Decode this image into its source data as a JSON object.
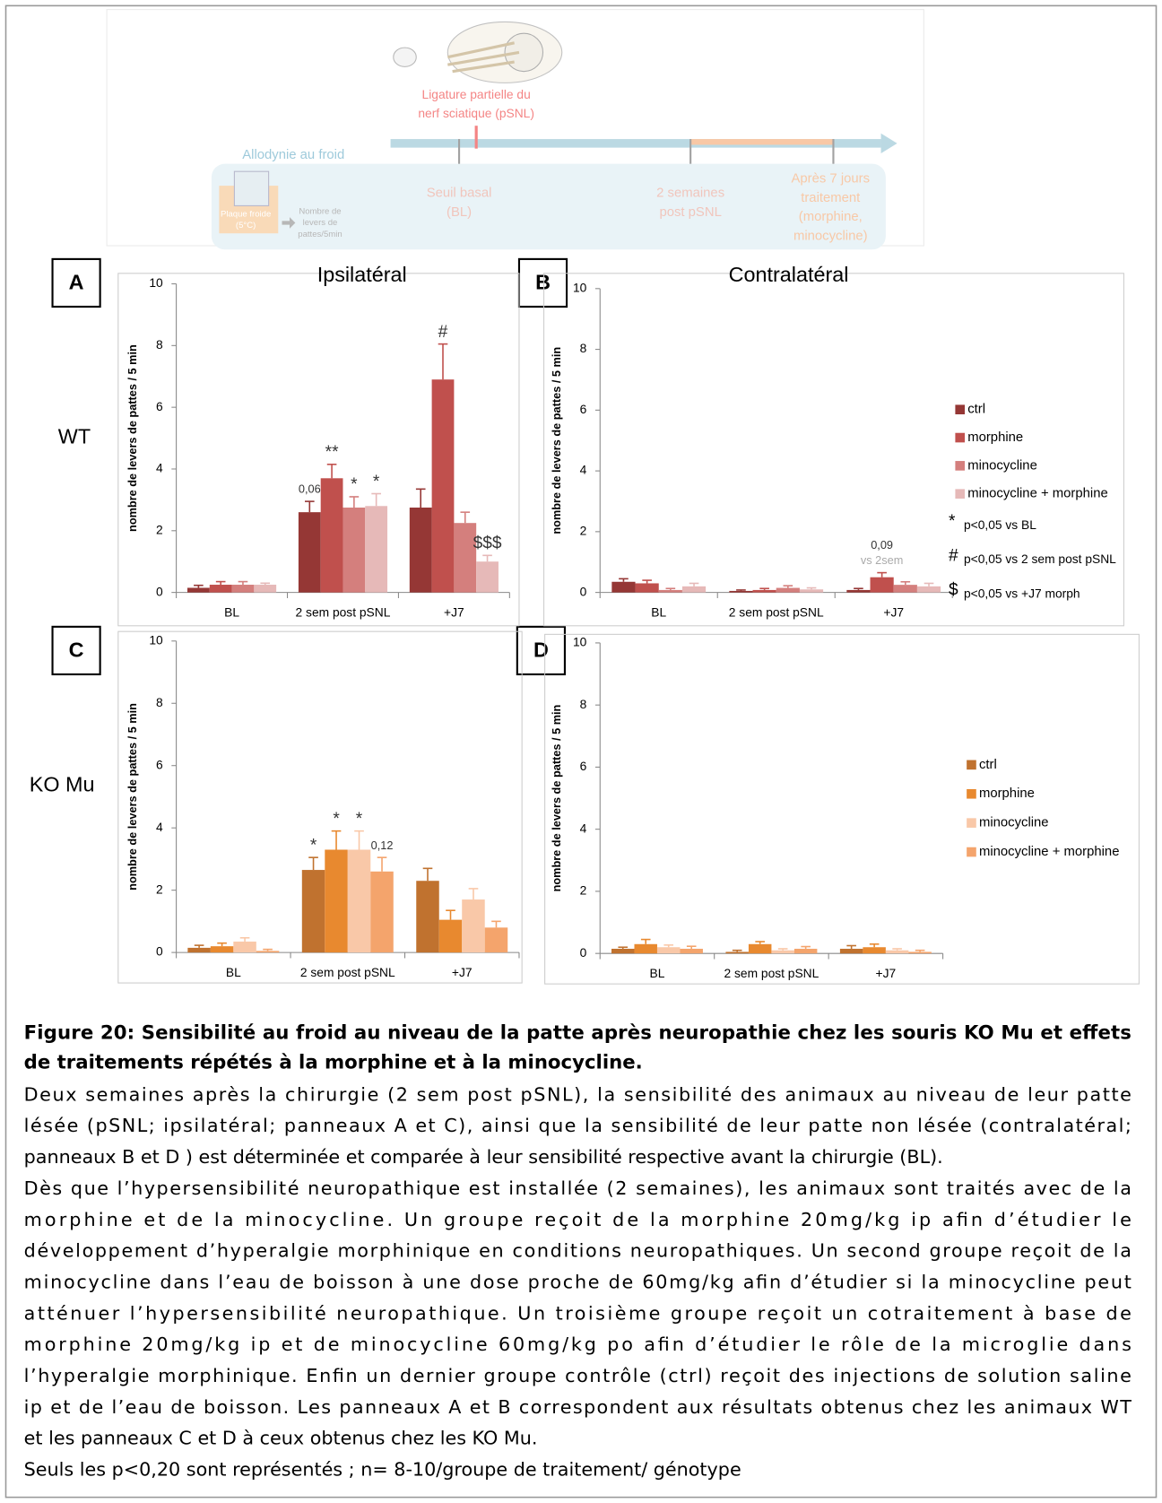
{
  "diagram": {
    "ligature": [
      "Ligature partielle du",
      "nerf sciatique (pSNL)"
    ],
    "test": "Allodynie au froid",
    "plate": [
      "Plaque froide",
      "(5°C)"
    ],
    "count": [
      "Nombre de",
      "levers de",
      "pattes/5min"
    ],
    "stages": [
      [
        "Seuil basal",
        "(BL)"
      ],
      [
        "2 semaines",
        "post pSNL"
      ],
      [
        "Après 7 jours",
        "traitement",
        "(morphine,",
        "minocycline)"
      ]
    ]
  },
  "panel_labels": [
    "A",
    "B",
    "C",
    "D"
  ],
  "row_labels": [
    "WT",
    "KO Mu"
  ],
  "chart_data": [
    {
      "type": "bar",
      "title": "Ipsilatéral",
      "y_label": "nombre de levers de pattes / 5 min",
      "categories": [
        "BL",
        "2 sem post pSNL",
        "+J7"
      ],
      "ylim": [
        0,
        10
      ],
      "yticks": [
        0,
        2,
        4,
        6,
        8,
        10
      ],
      "series": [
        {
          "name": "ctrl",
          "color": "#953735",
          "values": [
            0.15,
            2.6,
            2.75
          ],
          "errors": [
            0.08,
            0.35,
            0.6
          ]
        },
        {
          "name": "morphine",
          "color": "#c0504d",
          "values": [
            0.25,
            3.7,
            6.9
          ],
          "errors": [
            0.1,
            0.45,
            1.15
          ]
        },
        {
          "name": "minocycline",
          "color": "#d47f7d",
          "values": [
            0.25,
            2.75,
            2.25
          ],
          "errors": [
            0.1,
            0.35,
            0.35
          ]
        },
        {
          "name": "minocycline + morphine",
          "color": "#e6b9b8",
          "values": [
            0.25,
            2.8,
            1.0
          ],
          "errors": [
            0.05,
            0.4,
            0.2
          ]
        }
      ],
      "annotations": [
        {
          "text": "0,06",
          "series": "ctrl",
          "category": "2 sem post pSNL"
        },
        {
          "text": "**",
          "series": "morphine",
          "category": "2 sem post pSNL"
        },
        {
          "text": "*",
          "series": "minocycline",
          "category": "2 sem post pSNL"
        },
        {
          "text": "*",
          "series": "minocycline + morphine",
          "category": "2 sem post pSNL"
        },
        {
          "text": "#",
          "series": "morphine",
          "category": "+J7"
        },
        {
          "text": "$$$",
          "series": "minocycline + morphine",
          "category": "+J7"
        }
      ]
    },
    {
      "type": "bar",
      "title": "Contralatéral",
      "y_label": "nombre de levers de pattes / 5 min",
      "categories": [
        "BL",
        "2 sem post pSNL",
        "+J7"
      ],
      "ylim": [
        0,
        10
      ],
      "yticks": [
        0,
        2,
        4,
        6,
        8,
        10
      ],
      "legend": "right",
      "series": [
        {
          "name": "ctrl",
          "color": "#953735",
          "values": [
            0.35,
            0.05,
            0.08
          ],
          "errors": [
            0.1,
            0.03,
            0.05
          ]
        },
        {
          "name": "morphine",
          "color": "#c0504d",
          "values": [
            0.3,
            0.08,
            0.5
          ],
          "errors": [
            0.1,
            0.05,
            0.15
          ]
        },
        {
          "name": "minocycline",
          "color": "#d47f7d",
          "values": [
            0.08,
            0.15,
            0.25
          ],
          "errors": [
            0.05,
            0.07,
            0.1
          ]
        },
        {
          "name": "minocycline + morphine",
          "color": "#e6b9b8",
          "values": [
            0.2,
            0.1,
            0.2
          ],
          "errors": [
            0.1,
            0.05,
            0.1
          ]
        }
      ],
      "annotations": [
        {
          "text": "vs 2sem",
          "series": "morphine",
          "category": "+J7",
          "color": "#aaaaaa"
        },
        {
          "text": "0,09",
          "series": "morphine",
          "category": "+J7"
        }
      ],
      "notes": [
        {
          "symbol": "*",
          "text": "p<0,05 vs BL"
        },
        {
          "symbol": "#",
          "text": "p<0,05 vs 2 sem post pSNL"
        },
        {
          "symbol": "$",
          "text": "p<0,05 vs +J7 morph"
        }
      ]
    },
    {
      "type": "bar",
      "y_label": "nombre de levers de pattes / 5 min",
      "categories": [
        "BL",
        "2 sem post pSNL",
        "+J7"
      ],
      "ylim": [
        0,
        10
      ],
      "yticks": [
        0,
        2,
        4,
        6,
        8,
        10
      ],
      "series": [
        {
          "name": "ctrl",
          "color": "#c0722f",
          "values": [
            0.15,
            2.65,
            2.3
          ],
          "errors": [
            0.08,
            0.4,
            0.4
          ]
        },
        {
          "name": "morphine",
          "color": "#e8892f",
          "values": [
            0.2,
            3.3,
            1.05
          ],
          "errors": [
            0.1,
            0.6,
            0.3
          ]
        },
        {
          "name": "minocycline",
          "color": "#f9c8a8",
          "values": [
            0.35,
            3.3,
            1.7
          ],
          "errors": [
            0.12,
            0.6,
            0.35
          ]
        },
        {
          "name": "minocycline + morphine",
          "color": "#f4a46c",
          "values": [
            0.05,
            2.6,
            0.8
          ],
          "errors": [
            0.05,
            0.45,
            0.2
          ]
        }
      ],
      "annotations": [
        {
          "text": "*",
          "series": "ctrl",
          "category": "2 sem post pSNL"
        },
        {
          "text": "*",
          "series": "morphine",
          "category": "2 sem post pSNL"
        },
        {
          "text": "*",
          "series": "minocycline",
          "category": "2 sem post pSNL"
        },
        {
          "text": "0,12",
          "series": "minocycline + morphine",
          "category": "2 sem post pSNL"
        }
      ]
    },
    {
      "type": "bar",
      "y_label": "nombre de levers de pattes / 5 min",
      "categories": [
        "BL",
        "2 sem post pSNL",
        "+J7"
      ],
      "ylim": [
        0,
        10
      ],
      "yticks": [
        0,
        2,
        4,
        6,
        8,
        10
      ],
      "legend": "right",
      "series": [
        {
          "name": "ctrl",
          "color": "#c0722f",
          "values": [
            0.15,
            0.05,
            0.15
          ],
          "errors": [
            0.05,
            0.05,
            0.1
          ]
        },
        {
          "name": "morphine",
          "color": "#e8892f",
          "values": [
            0.3,
            0.3,
            0.2
          ],
          "errors": [
            0.15,
            0.08,
            0.1
          ]
        },
        {
          "name": "minocycline",
          "color": "#f9c8a8",
          "values": [
            0.2,
            0.1,
            0.1
          ],
          "errors": [
            0.07,
            0.05,
            0.05
          ]
        },
        {
          "name": "minocycline + morphine",
          "color": "#f4a46c",
          "values": [
            0.15,
            0.15,
            0.05
          ],
          "errors": [
            0.08,
            0.07,
            0.05
          ]
        }
      ]
    }
  ],
  "caption": {
    "title": [
      "Figure 20: Sensibilité au froid au niveau de la patte après neuropathie chez les souris KO Mu et effets",
      "de traitements répétés à la morphine et à la minocycline."
    ],
    "paragraphs": [
      [
        "Deux semaines après la chirurgie (2 sem post pSNL), la sensibilité des animaux au niveau de leur patte",
        "lésée (pSNL; ipsilatéral; panneaux A et C), ainsi que la sensibilité de leur patte non lésée (contralatéral;",
        "panneaux B et D ) est déterminée et comparée à leur sensibilité respective avant la chirurgie (BL)."
      ],
      [
        "Dès que l’hypersensibilité neuropathique est installée (2 semaines), les animaux sont traités avec de la",
        "morphine et de la minocycline. Un groupe reçoit de la morphine 20mg/kg ip afin d’étudier le",
        "développement d’hyperalgie morphinique en conditions neuropathiques. Un second groupe reçoit de la",
        "minocycline dans l’eau de boisson à une dose proche de 60mg/kg afin d’étudier si la minocycline peut",
        "atténuer l’hypersensibilité neuropathique. Un troisième groupe reçoit un cotraitement à base de",
        "morphine 20mg/kg ip et de minocycline 60mg/kg po afin d’étudier le rôle de la microglie dans",
        "l’hyperalgie morphinique. Enfin un dernier groupe contrôle (ctrl) reçoit des injections de solution saline",
        "ip et de l’eau de boisson. Les panneaux A et B correspondent aux résultats obtenus chez les animaux WT",
        "et les panneaux C et D à ceux obtenus chez les KO Mu."
      ],
      [
        "Seuls les p<0,20 sont représentés ; n= 8-10/groupe de traitement/ génotype"
      ]
    ]
  }
}
